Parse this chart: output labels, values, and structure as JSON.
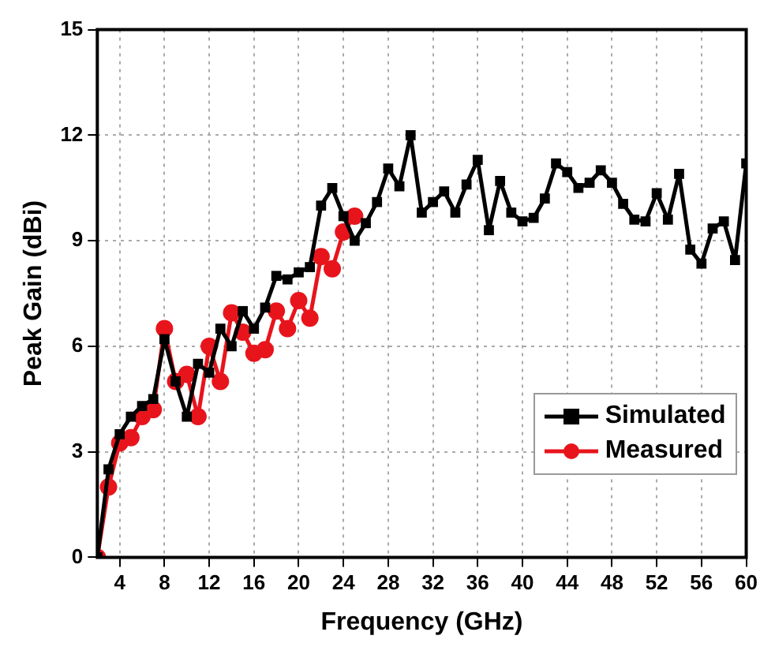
{
  "chart_data": {
    "type": "line",
    "xlabel": "Frequency (GHz)",
    "ylabel": "Peak Gain (dBi)",
    "xlim": [
      2,
      60
    ],
    "xticks": [
      4,
      8,
      12,
      16,
      20,
      24,
      28,
      32,
      36,
      40,
      44,
      48,
      52,
      56,
      60
    ],
    "ylim": [
      0,
      15
    ],
    "yticks": [
      0,
      3,
      6,
      9,
      12,
      15
    ],
    "grid": true,
    "legend": "bottom right",
    "line_style": "solid",
    "series": [
      {
        "name": "Simulated",
        "color": "#000000",
        "marker": "square",
        "x": [
          2,
          3,
          4,
          5,
          6,
          7,
          8,
          9,
          10,
          11,
          12,
          13,
          14,
          15,
          16,
          17,
          18,
          19,
          20,
          21,
          22,
          23,
          24,
          25,
          26,
          27,
          28,
          29,
          30,
          31,
          32,
          33,
          34,
          35,
          36,
          37,
          38,
          39,
          40,
          41,
          42,
          43,
          44,
          45,
          46,
          47,
          48,
          49,
          50,
          51,
          52,
          53,
          54,
          55,
          56,
          57,
          58,
          59,
          60
        ],
        "values": [
          0,
          2.5,
          3.5,
          4.0,
          4.3,
          4.5,
          6.2,
          5.0,
          4.0,
          5.5,
          5.25,
          6.5,
          6.0,
          7.0,
          6.5,
          7.1,
          8.0,
          7.9,
          8.1,
          8.25,
          10.0,
          10.5,
          9.7,
          9.0,
          9.5,
          10.1,
          11.05,
          10.55,
          12.0,
          9.8,
          10.1,
          10.4,
          9.8,
          10.6,
          11.3,
          9.3,
          10.7,
          9.8,
          9.55,
          9.65,
          10.2,
          11.2,
          10.95,
          10.5,
          10.65,
          11.0,
          10.65,
          10.05,
          9.6,
          9.55,
          10.35,
          9.6,
          10.9,
          8.75,
          8.35,
          9.35,
          9.55,
          8.45,
          11.2
        ]
      },
      {
        "name": "Measured",
        "color": "#e8141c",
        "marker": "circle",
        "x": [
          2,
          3,
          4,
          5,
          6,
          7,
          8,
          9,
          10,
          11,
          12,
          13,
          14,
          15,
          16,
          17,
          18,
          19,
          20,
          21,
          22,
          23,
          24,
          25
        ],
        "values": [
          0,
          2.0,
          3.25,
          3.4,
          4.0,
          4.2,
          6.5,
          5.0,
          5.2,
          4.0,
          6.0,
          5.0,
          6.95,
          6.4,
          5.8,
          5.9,
          7.0,
          6.5,
          7.3,
          6.8,
          8.55,
          8.2,
          9.25,
          9.7
        ]
      }
    ]
  }
}
